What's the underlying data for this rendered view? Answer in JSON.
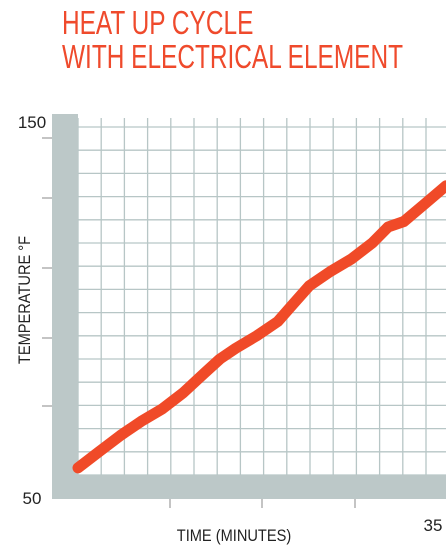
{
  "chart_data": {
    "type": "line",
    "title_lines": [
      "HEAT UP CYCLE",
      "WITH ELECTRICAL ELEMENT"
    ],
    "xlabel": "TIME  (MINUTES)",
    "ylabel": "TEMPERATURE °F",
    "xlim": [
      0,
      35
    ],
    "ylim": [
      50,
      150
    ],
    "x_tick_labels": [
      {
        "value": 35,
        "label": "35"
      }
    ],
    "y_tick_labels": [
      {
        "value": 50,
        "label": "50"
      },
      {
        "value": 150,
        "label": "150"
      }
    ],
    "grid": true,
    "legend": "none",
    "series": [
      {
        "x": [
          0,
          2,
          4,
          6,
          8,
          10,
          12,
          13.5,
          15,
          17,
          19,
          20.5,
          22,
          24,
          26,
          28,
          29.5,
          31,
          33,
          35
        ],
        "y": [
          52,
          56.5,
          61,
          65,
          68.5,
          73,
          78.5,
          82.5,
          85.5,
          89,
          93,
          98,
          103,
          107,
          110.5,
          115,
          119.5,
          121,
          126,
          131
        ]
      }
    ],
    "colors": {
      "line": "#f04a28",
      "grid": "#b7c6c6",
      "axis_band": "#bcc8c8",
      "title": "#ef4a2c"
    }
  }
}
